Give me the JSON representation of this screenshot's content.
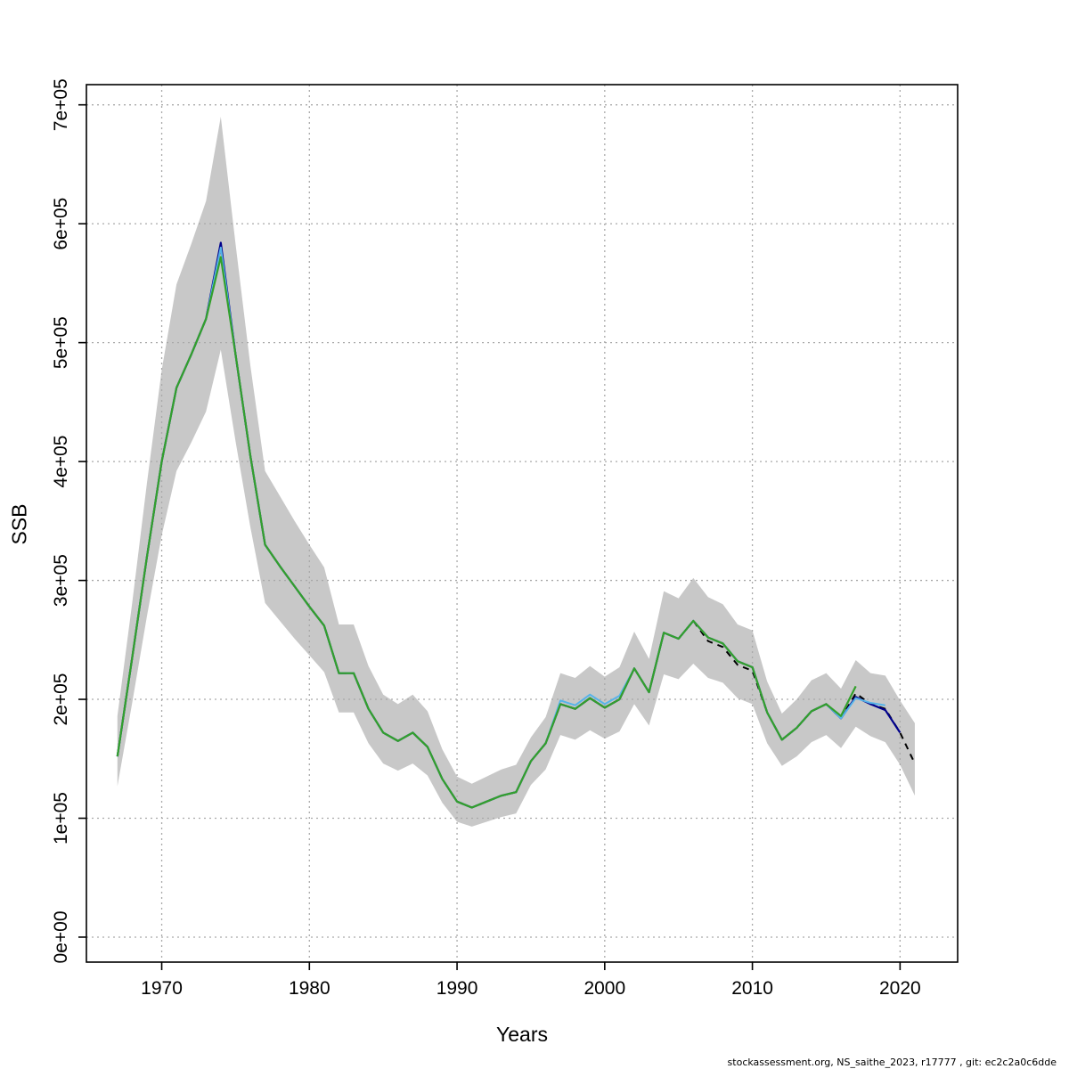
{
  "page": {
    "background": "#ffffff"
  },
  "footer": {
    "text": "stockassessment.org, NS_saithe_2023, r17777 , git: ec2c2a0c6dde"
  },
  "chart_data": {
    "type": "line",
    "title": "",
    "xlabel": "Years",
    "ylabel": "SSB",
    "xlim": [
      1964.9,
      2023.9
    ],
    "ylim": [
      -21000,
      717000
    ],
    "grid": true,
    "legend_position": "none",
    "x_ticks": [
      1970,
      1980,
      1990,
      2000,
      2010,
      2020
    ],
    "x_tick_labels": [
      "1970",
      "1980",
      "1990",
      "2000",
      "2010",
      "2020"
    ],
    "y_ticks": [
      0,
      100000,
      200000,
      300000,
      400000,
      500000,
      600000,
      700000
    ],
    "y_tick_labels": [
      "0e+00",
      "1e+05",
      "2e+05",
      "3e+05",
      "4e+05",
      "5e+05",
      "6e+05",
      "7e+05"
    ],
    "years": [
      1967,
      1968,
      1969,
      1970,
      1971,
      1972,
      1973,
      1974,
      1975,
      1976,
      1977,
      1978,
      1979,
      1980,
      1981,
      1982,
      1983,
      1984,
      1985,
      1986,
      1987,
      1988,
      1989,
      1990,
      1991,
      1992,
      1993,
      1994,
      1995,
      1996,
      1997,
      1998,
      1999,
      2000,
      2001,
      2002,
      2003,
      2004,
      2005,
      2006,
      2007,
      2008,
      2009,
      2010,
      2011,
      2012,
      2013,
      2014,
      2015,
      2016,
      2017,
      2018,
      2019,
      2020,
      2021
    ],
    "band": {
      "name": "confidence-band",
      "color": "#c8c8c8",
      "lower": [
        127000,
        197000,
        270000,
        338000,
        392000,
        416000,
        442000,
        494000,
        417000,
        345000,
        281000,
        266000,
        251000,
        237000,
        223000,
        189000,
        189000,
        163000,
        146000,
        140000,
        146000,
        136000,
        113000,
        97000,
        93000,
        97000,
        101000,
        104000,
        128000,
        141000,
        170000,
        166000,
        174000,
        167000,
        173000,
        196000,
        178000,
        221000,
        217000,
        230000,
        218000,
        214000,
        201000,
        196000,
        163000,
        144000,
        152000,
        164000,
        170000,
        159000,
        177000,
        169000,
        164000,
        145000,
        119000
      ],
      "upper": [
        186000,
        281000,
        382000,
        477000,
        549000,
        583000,
        619000,
        690000,
        583000,
        481000,
        392000,
        371000,
        350000,
        330000,
        311000,
        263000,
        263000,
        228000,
        204000,
        196000,
        204000,
        190000,
        158000,
        135000,
        129000,
        135000,
        141000,
        145000,
        168000,
        185000,
        222000,
        218000,
        228000,
        219000,
        227000,
        257000,
        234000,
        291000,
        285000,
        302000,
        286000,
        280000,
        263000,
        258000,
        215000,
        188000,
        200000,
        216000,
        222000,
        209000,
        233000,
        222000,
        220000,
        199000,
        180000
      ]
    },
    "series": [
      {
        "name": "ssb-fit-black-dashed",
        "color": "#000000",
        "dash": "7 6",
        "width": 2,
        "start_year": 1967,
        "values": [
          152000,
          235000,
          320000,
          400000,
          462000,
          490000,
          520000,
          580000,
          490000,
          405000,
          330000,
          312000,
          295000,
          278000,
          262000,
          222000,
          222000,
          192000,
          172000,
          165000,
          172000,
          160000,
          133000,
          114000,
          109000,
          114000,
          119000,
          122000,
          148000,
          163000,
          196000,
          192000,
          201000,
          193000,
          200000,
          226000,
          206000,
          256000,
          251000,
          266000,
          249000,
          244000,
          229000,
          224000,
          189000,
          166000,
          176000,
          190000,
          196000,
          184000,
          205000,
          196000,
          192000,
          172000,
          146000
        ]
      },
      {
        "name": "ssb-fit-blue",
        "color": "#00008B",
        "dash": "",
        "width": 2.2,
        "start_year": 1967,
        "values": [
          152000,
          235000,
          320000,
          400000,
          462000,
          490000,
          520000,
          584000,
          490000,
          405000,
          330000,
          312000,
          295000,
          278000,
          262000,
          222000,
          222000,
          192000,
          172000,
          165000,
          172000,
          160000,
          133000,
          114000,
          109000,
          114000,
          119000,
          122000,
          148000,
          163000,
          196000,
          192000,
          201000,
          193000,
          200000,
          226000,
          206000,
          256000,
          251000,
          266000,
          252000,
          247000,
          232000,
          227000,
          189000,
          166000,
          176000,
          190000,
          196000,
          184000,
          202000,
          196000,
          191000,
          172000
        ]
      },
      {
        "name": "ssb-fit-lightblue",
        "color": "#56B4E9",
        "dash": "",
        "width": 2,
        "start_year": 1967,
        "values": [
          152000,
          235000,
          320000,
          400000,
          462000,
          490000,
          520000,
          580000,
          490000,
          405000,
          330000,
          312000,
          295000,
          278000,
          262000,
          222000,
          222000,
          192000,
          172000,
          165000,
          172000,
          160000,
          133000,
          114000,
          109000,
          114000,
          119000,
          122000,
          148000,
          163000,
          199000,
          195000,
          204000,
          196000,
          203000,
          226000,
          206000,
          256000,
          251000,
          266000,
          252000,
          247000,
          232000,
          227000,
          189000,
          166000,
          176000,
          190000,
          196000,
          184000,
          201000,
          197000,
          195000
        ]
      },
      {
        "name": "ssb-fit-green",
        "color": "#33a02c",
        "dash": "",
        "width": 2.2,
        "start_year": 1967,
        "values": [
          152000,
          235000,
          320000,
          400000,
          462000,
          490000,
          520000,
          572000,
          490000,
          405000,
          330000,
          312000,
          295000,
          278000,
          262000,
          222000,
          222000,
          192000,
          172000,
          165000,
          172000,
          160000,
          133000,
          114000,
          109000,
          114000,
          119000,
          122000,
          148000,
          163000,
          196000,
          192000,
          201000,
          193000,
          200000,
          226000,
          206000,
          256000,
          251000,
          266000,
          252000,
          247000,
          232000,
          227000,
          189000,
          166000,
          176000,
          190000,
          196000,
          186000,
          211000
        ]
      }
    ],
    "colors": {
      "grid": "#a9a9a9",
      "axis": "#000000",
      "band": "#c8c8c8"
    }
  }
}
